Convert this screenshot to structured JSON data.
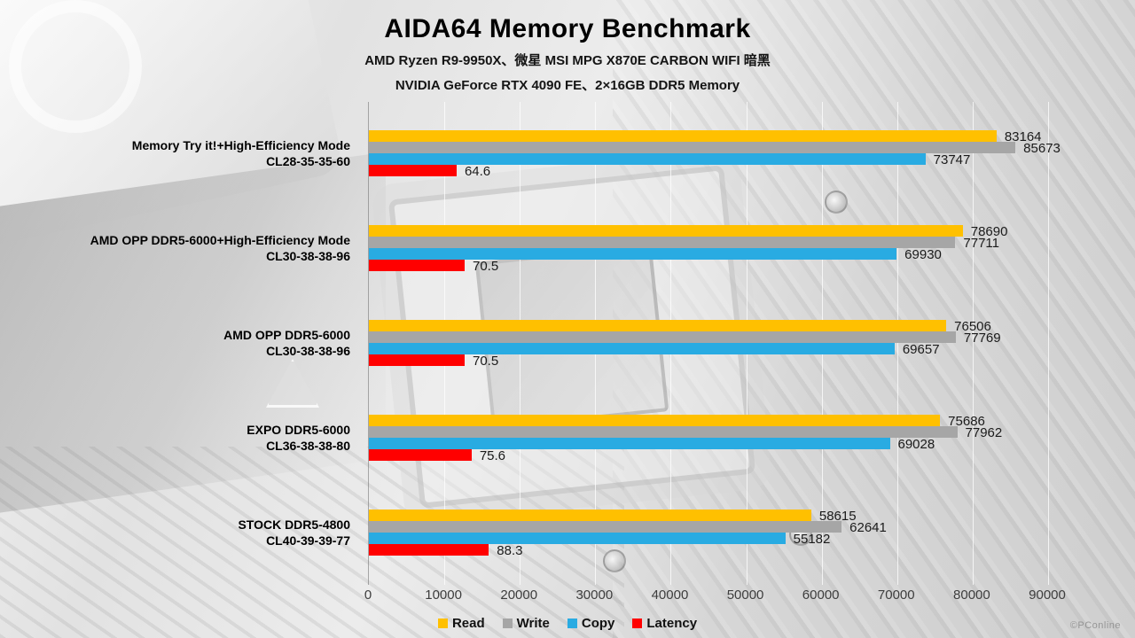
{
  "page": {
    "title": "AIDA64 Memory Benchmark",
    "subtitle1": "AMD Ryzen R9-9950X、微星 MSI MPG X870E CARBON WIFI 暗黑",
    "subtitle2": "NVIDIA GeForce RTX 4090 FE、2×16GB DDR5 Memory",
    "watermark": "©PConline"
  },
  "chart_data": {
    "type": "bar",
    "orientation": "horizontal",
    "title": "AIDA64 Memory Benchmark",
    "subtitle": [
      "AMD Ryzen R9-9950X、微星 MSI MPG X870E CARBON WIFI 暗黑",
      "NVIDIA GeForce RTX 4090 FE、2×16GB DDR5 Memory"
    ],
    "categories": [
      [
        "Memory Try it!+High-Efficiency Mode",
        "CL28-35-35-60"
      ],
      [
        "AMD OPP DDR5-6000+High-Efficiency Mode",
        "CL30-38-38-96"
      ],
      [
        "AMD OPP DDR5-6000",
        "CL30-38-38-96"
      ],
      [
        "EXPO DDR5-6000",
        "CL36-38-38-80"
      ],
      [
        "STOCK DDR5-4800",
        "CL40-39-39-77"
      ]
    ],
    "series": [
      {
        "name": "Read",
        "color": "#FFC000",
        "values": [
          83164,
          78690,
          76506,
          75686,
          58615
        ]
      },
      {
        "name": "Write",
        "color": "#A6A6A6",
        "values": [
          85673,
          77711,
          77769,
          77962,
          62641
        ]
      },
      {
        "name": "Copy",
        "color": "#29ABE2",
        "values": [
          73747,
          69930,
          69657,
          69028,
          55182
        ]
      },
      {
        "name": "Latency",
        "color": "#FF0000",
        "values": [
          64.6,
          70.5,
          70.5,
          75.6,
          88.3
        ],
        "axis_scale": 180,
        "unit": "ns"
      }
    ],
    "xlim": [
      0,
      90000
    ],
    "xticks": [
      0,
      10000,
      20000,
      30000,
      40000,
      50000,
      60000,
      70000,
      80000,
      90000
    ],
    "grid": true,
    "legend_position": "bottom"
  }
}
